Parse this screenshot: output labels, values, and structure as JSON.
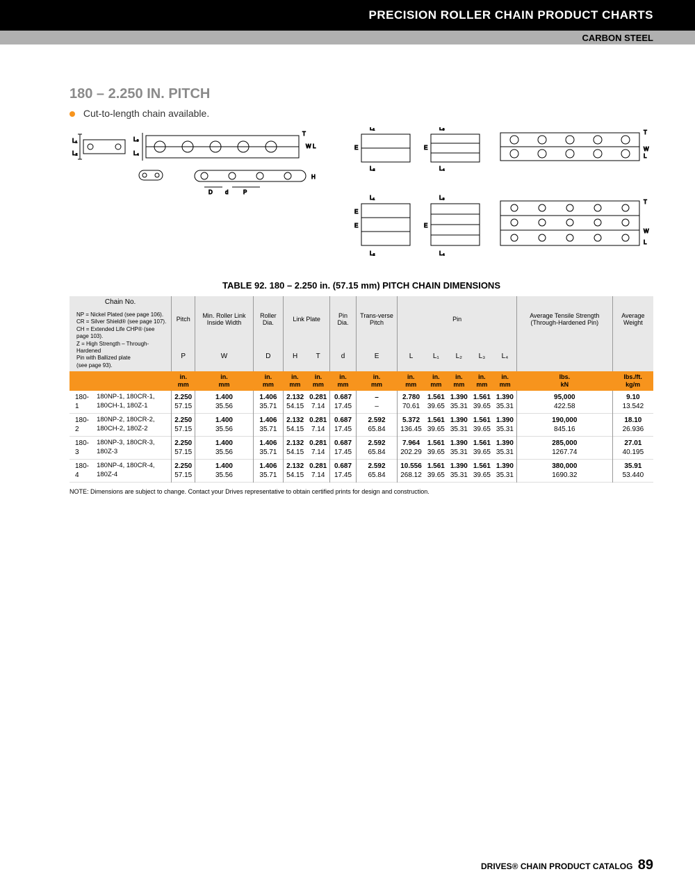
{
  "header": {
    "title": "PRECISION ROLLER CHAIN PRODUCT CHARTS",
    "subtitle": "CARBON STEEL"
  },
  "section": {
    "title": "180 – 2.250 IN. PITCH",
    "bullet": "Cut-to-length chain available."
  },
  "diagram": {
    "stroke": "#000000",
    "fill": "#ffffff",
    "labels": [
      "L₁",
      "L₂",
      "L₃",
      "L₄",
      "T",
      "W",
      "L",
      "E",
      "D",
      "d",
      "P",
      "H"
    ]
  },
  "table": {
    "caption": "TABLE 92. 180 – 2.250 in. (57.15 mm) PITCH CHAIN DIMENSIONS",
    "legend_title": "Chain No.",
    "legend_lines": [
      "NP = Nickel Plated (see page 106).",
      "CR = Silver Shield® (see page 107).",
      "CH = Extended Life CHP® (see page 103).",
      "Z = High Strength – Through-Hardened",
      "      Pin with Ballized plate",
      "      (see page 93)."
    ],
    "group_headers": [
      {
        "label": "Pitch",
        "span": 1
      },
      {
        "label": "Min. Roller Link Inside Width",
        "span": 1
      },
      {
        "label": "Roller Dia.",
        "span": 1
      },
      {
        "label": "Link Plate",
        "span": 2
      },
      {
        "label": "Pin Dia.",
        "span": 1
      },
      {
        "label": "Trans-verse Pitch",
        "span": 1
      },
      {
        "label": "Pin",
        "span": 5
      },
      {
        "label": "Average Tensile Strength (Through-Hardened Pin)",
        "span": 1
      },
      {
        "label": "Average Weight",
        "span": 1
      }
    ],
    "symbol_headers": [
      "P",
      "W",
      "D",
      "H",
      "T",
      "d",
      "E",
      "L",
      "L₁",
      "L₂",
      "L₃",
      "L₄",
      "",
      ""
    ],
    "unit_top": [
      "in.",
      "in.",
      "in.",
      "in.",
      "in.",
      "in.",
      "in.",
      "in.",
      "in.",
      "in.",
      "in.",
      "in.",
      "lbs.",
      "lbs./ft."
    ],
    "unit_bot": [
      "mm",
      "mm",
      "mm",
      "mm",
      "mm",
      "mm",
      "mm",
      "mm",
      "mm",
      "mm",
      "mm",
      "mm",
      "kN",
      "kg/m"
    ],
    "rows": [
      {
        "id": "180-1",
        "variants": "180NP-1, 180CR-1, 180CH-1, 180Z-1",
        "vals": [
          [
            "2.250",
            "57.15"
          ],
          [
            "1.400",
            "35.56"
          ],
          [
            "1.406",
            "35.71"
          ],
          [
            "2.132",
            "54.15"
          ],
          [
            "0.281",
            "7.14"
          ],
          [
            "0.687",
            "17.45"
          ],
          [
            "–",
            "–"
          ],
          [
            "2.780",
            "70.61"
          ],
          [
            "1.561",
            "39.65"
          ],
          [
            "1.390",
            "35.31"
          ],
          [
            "1.561",
            "39.65"
          ],
          [
            "1.390",
            "35.31"
          ],
          [
            "95,000",
            "422.58"
          ],
          [
            "9.10",
            "13.542"
          ]
        ]
      },
      {
        "id": "180-2",
        "variants": "180NP-2, 180CR-2, 180CH-2, 180Z-2",
        "vals": [
          [
            "2.250",
            "57.15"
          ],
          [
            "1.400",
            "35.56"
          ],
          [
            "1.406",
            "35.71"
          ],
          [
            "2.132",
            "54.15"
          ],
          [
            "0.281",
            "7.14"
          ],
          [
            "0.687",
            "17.45"
          ],
          [
            "2.592",
            "65.84"
          ],
          [
            "5.372",
            "136.45"
          ],
          [
            "1.561",
            "39.65"
          ],
          [
            "1.390",
            "35.31"
          ],
          [
            "1.561",
            "39.65"
          ],
          [
            "1.390",
            "35.31"
          ],
          [
            "190,000",
            "845.16"
          ],
          [
            "18.10",
            "26.936"
          ]
        ]
      },
      {
        "id": "180-3",
        "variants": "180NP-3, 180CR-3, 180Z-3",
        "vals": [
          [
            "2.250",
            "57.15"
          ],
          [
            "1.400",
            "35.56"
          ],
          [
            "1.406",
            "35.71"
          ],
          [
            "2.132",
            "54.15"
          ],
          [
            "0.281",
            "7.14"
          ],
          [
            "0.687",
            "17.45"
          ],
          [
            "2.592",
            "65.84"
          ],
          [
            "7.964",
            "202.29"
          ],
          [
            "1.561",
            "39.65"
          ],
          [
            "1.390",
            "35.31"
          ],
          [
            "1.561",
            "39.65"
          ],
          [
            "1.390",
            "35.31"
          ],
          [
            "285,000",
            "1267.74"
          ],
          [
            "27.01",
            "40.195"
          ]
        ]
      },
      {
        "id": "180-4",
        "variants": "180NP-4, 180CR-4, 180Z-4",
        "vals": [
          [
            "2.250",
            "57.15"
          ],
          [
            "1.400",
            "35.56"
          ],
          [
            "1.406",
            "35.71"
          ],
          [
            "2.132",
            "54.15"
          ],
          [
            "0.281",
            "7.14"
          ],
          [
            "0.687",
            "17.45"
          ],
          [
            "2.592",
            "65.84"
          ],
          [
            "10.556",
            "268.12"
          ],
          [
            "1.561",
            "39.65"
          ],
          [
            "1.390",
            "35.31"
          ],
          [
            "1.561",
            "39.65"
          ],
          [
            "1.390",
            "35.31"
          ],
          [
            "380,000",
            "1690.32"
          ],
          [
            "35.91",
            "53.440"
          ]
        ]
      }
    ],
    "note": "NOTE: Dimensions are subject to change. Contact your Drives representative to obtain certified prints for design and construction."
  },
  "footer": {
    "text": "DRIVES® CHAIN PRODUCT CATALOG",
    "page": "89"
  },
  "colors": {
    "accent": "#f7941d",
    "header_bg": "#000000",
    "subbar_bg": "#b0b0b0",
    "table_hdr_bg": "#e8e8e8"
  }
}
